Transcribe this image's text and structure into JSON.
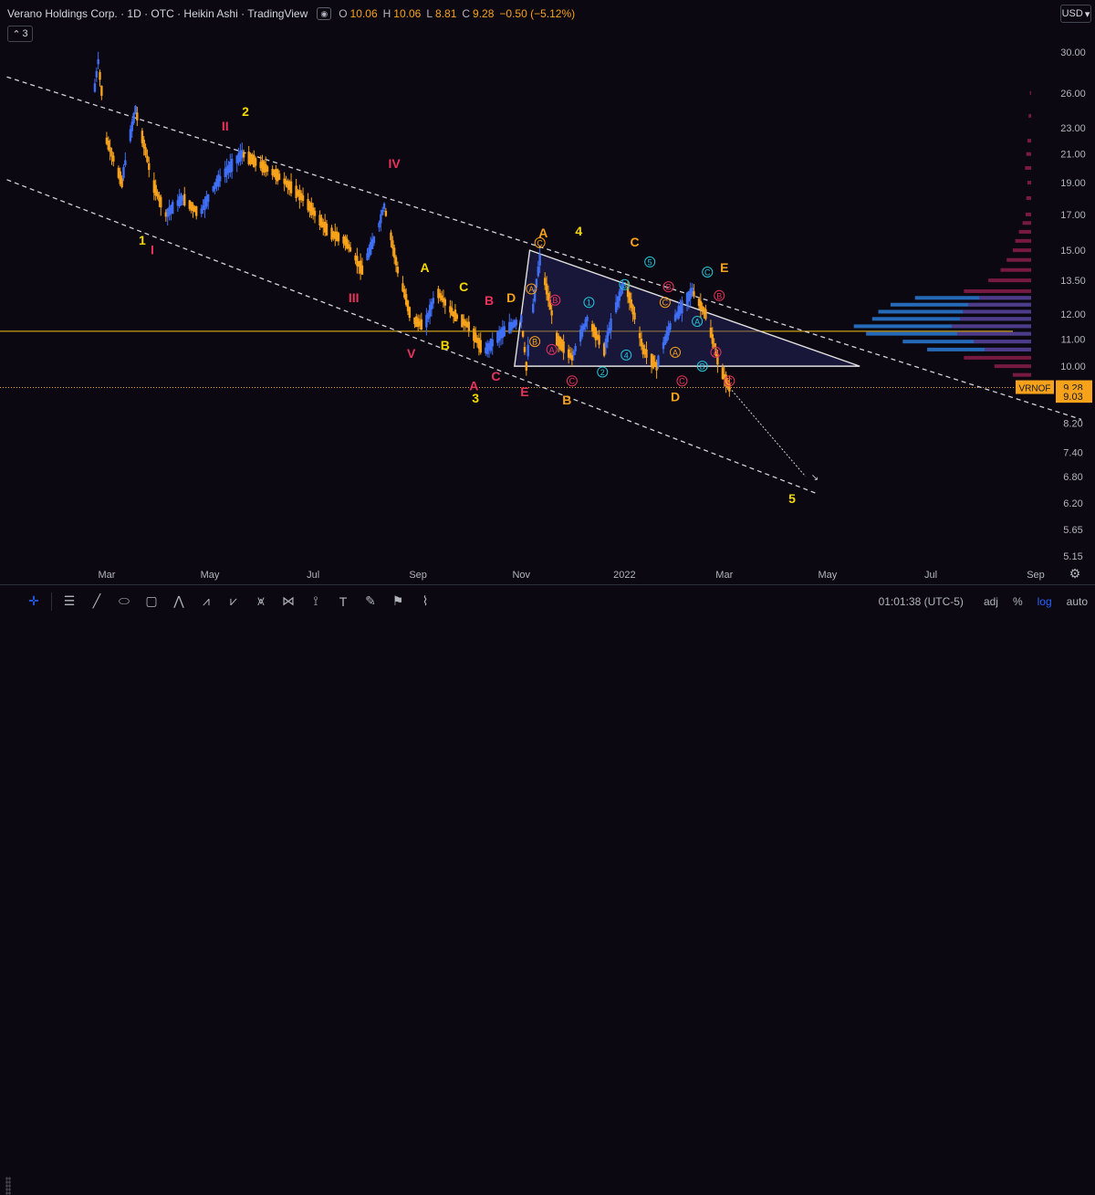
{
  "header": {
    "title": "Verano Holdings Corp. · 1D · OTC · Heikin Ashi · TradingView",
    "ohlc": [
      {
        "key": "O",
        "value": "10.06"
      },
      {
        "key": "H",
        "value": "10.06"
      },
      {
        "key": "L",
        "value": "8.81"
      },
      {
        "key": "C",
        "value": "9.28"
      },
      {
        "key": "",
        "value": "−0.50 (−5.12%)"
      }
    ],
    "collapse_count": "3",
    "currency": "USD"
  },
  "chart_data": {
    "type": "candlestick",
    "price_scale": "log",
    "y_ticks": [
      "30.00",
      "26.00",
      "23.00",
      "21.00",
      "19.00",
      "17.00",
      "15.00",
      "13.50",
      "12.00",
      "11.00",
      "10.00",
      "9.00",
      "8.20",
      "7.40",
      "6.80",
      "6.20",
      "5.65",
      "5.15"
    ],
    "x_ticks": [
      "Mar",
      "May",
      "Jul",
      "Sep",
      "Nov",
      "2022",
      "Mar",
      "May",
      "Jul",
      "Sep"
    ],
    "last_price": {
      "symbol": "VRNOF",
      "price": "9.28",
      "second": "9.03"
    },
    "horizontal_level": 11.3,
    "colors": {
      "up": "#3f6ff5",
      "down": "#f7a21b",
      "bg": "#0c0811",
      "trend": "#e0e0e0",
      "wave_yellow": "#f5d800",
      "wave_red": "#e8335c",
      "wave_orange": "#f7a21b",
      "wave_cyan": "#26c6da"
    },
    "price_path": [
      [
        "2021-02-20",
        24.0
      ],
      [
        "2021-02-24",
        29.0
      ],
      [
        "2021-03-01",
        22.0
      ],
      [
        "2021-03-10",
        19.0
      ],
      [
        "2021-03-18",
        24.5
      ],
      [
        "2021-03-28",
        19.0
      ],
      [
        "2021-04-05",
        17.0
      ],
      [
        "2021-04-15",
        18.0
      ],
      [
        "2021-04-25",
        17.0
      ],
      [
        "2021-05-05",
        19.0
      ],
      [
        "2021-05-20",
        21.0
      ],
      [
        "2021-06-10",
        19.5
      ],
      [
        "2021-06-25",
        18.0
      ],
      [
        "2021-07-10",
        16.0
      ],
      [
        "2021-07-20",
        15.5
      ],
      [
        "2021-07-30",
        14.0
      ],
      [
        "2021-08-08",
        16.0
      ],
      [
        "2021-08-12",
        17.5
      ],
      [
        "2021-08-20",
        14.0
      ],
      [
        "2021-08-28",
        11.8
      ],
      [
        "2021-09-05",
        11.5
      ],
      [
        "2021-09-12",
        13.0
      ],
      [
        "2021-09-22",
        12.0
      ],
      [
        "2021-10-01",
        11.5
      ],
      [
        "2021-10-10",
        10.5
      ],
      [
        "2021-10-20",
        11.2
      ],
      [
        "2021-11-01",
        11.8
      ],
      [
        "2021-11-04",
        10.0
      ],
      [
        "2021-11-12",
        14.5
      ],
      [
        "2021-11-22",
        11.0
      ],
      [
        "2021-12-01",
        10.3
      ],
      [
        "2021-12-10",
        11.8
      ],
      [
        "2021-12-20",
        10.6
      ],
      [
        "2022-01-01",
        13.5
      ],
      [
        "2022-01-12",
        10.6
      ],
      [
        "2022-01-20",
        10.0
      ],
      [
        "2022-01-28",
        11.5
      ],
      [
        "2022-02-10",
        13.0
      ],
      [
        "2022-02-18",
        12.0
      ],
      [
        "2022-02-26",
        10.0
      ],
      [
        "2022-03-04",
        9.28
      ]
    ],
    "projection": [
      [
        "2022-03-04",
        9.28
      ],
      [
        "2022-04-18",
        6.8
      ]
    ],
    "triangle": [
      [
        "2021-11-06",
        15.0
      ],
      [
        "2022-05-20",
        10.0
      ],
      [
        "2021-10-28",
        10.0
      ]
    ],
    "channel_upper": [
      [
        "2021-01-01",
        27.5
      ],
      [
        "2022-09-28",
        8.3
      ]
    ],
    "channel_lower": [
      [
        "2021-01-01",
        19.2
      ],
      [
        "2022-04-25",
        6.4
      ]
    ],
    "wave_labels": [
      {
        "text": "1",
        "date": "2021-03-22",
        "price": 15.3,
        "color": "yellow"
      },
      {
        "text": "2",
        "date": "2021-05-22",
        "price": 24.0,
        "color": "yellow"
      },
      {
        "text": "3",
        "date": "2021-10-05",
        "price": 8.8,
        "color": "yellow"
      },
      {
        "text": "4",
        "date": "2021-12-05",
        "price": 15.8,
        "color": "yellow"
      },
      {
        "text": "5",
        "date": "2022-04-10",
        "price": 6.2,
        "color": "yellow"
      },
      {
        "text": "I",
        "date": "2021-03-28",
        "price": 14.8,
        "color": "red"
      },
      {
        "text": "II",
        "date": "2021-05-10",
        "price": 22.8,
        "color": "red"
      },
      {
        "text": "III",
        "date": "2021-07-25",
        "price": 12.5,
        "color": "red"
      },
      {
        "text": "IV",
        "date": "2021-08-18",
        "price": 20.0,
        "color": "red"
      },
      {
        "text": "V",
        "date": "2021-08-28",
        "price": 10.3,
        "color": "red"
      },
      {
        "text": "A",
        "date": "2021-09-05",
        "price": 13.9,
        "color": "yellow"
      },
      {
        "text": "B",
        "date": "2021-09-17",
        "price": 10.6,
        "color": "yellow"
      },
      {
        "text": "C",
        "date": "2021-09-28",
        "price": 13.0,
        "color": "yellow"
      },
      {
        "text": "A",
        "date": "2021-10-04",
        "price": 9.2,
        "color": "red"
      },
      {
        "text": "B",
        "date": "2021-10-13",
        "price": 12.4,
        "color": "red"
      },
      {
        "text": "C",
        "date": "2021-10-17",
        "price": 9.5,
        "color": "red"
      },
      {
        "text": "D",
        "date": "2021-10-26",
        "price": 12.5,
        "color": "orange"
      },
      {
        "text": "E",
        "date": "2021-11-03",
        "price": 9.0,
        "color": "red"
      },
      {
        "text": "A",
        "date": "2021-11-14",
        "price": 15.7,
        "color": "orange"
      },
      {
        "text": "B",
        "date": "2021-11-28",
        "price": 8.75,
        "color": "orange"
      },
      {
        "text": "C",
        "date": "2022-01-07",
        "price": 15.2,
        "color": "orange"
      },
      {
        "text": "D",
        "date": "2022-01-31",
        "price": 8.85,
        "color": "orange"
      },
      {
        "text": "E",
        "date": "2022-03-01",
        "price": 13.9,
        "color": "orange"
      }
    ],
    "circle_labels": [
      {
        "text": "C",
        "date": "2021-11-12",
        "price": 15.4,
        "color": "orange"
      },
      {
        "text": "A",
        "date": "2021-11-07",
        "price": 13.1,
        "color": "orange"
      },
      {
        "text": "B",
        "date": "2021-11-09",
        "price": 10.9,
        "color": "orange"
      },
      {
        "text": "B",
        "date": "2021-11-21",
        "price": 12.6,
        "color": "red"
      },
      {
        "text": "A",
        "date": "2021-11-19",
        "price": 10.6,
        "color": "red"
      },
      {
        "text": "C",
        "date": "2021-12-01",
        "price": 9.5,
        "color": "red"
      },
      {
        "text": "1",
        "date": "2021-12-11",
        "price": 12.5,
        "color": "cyan"
      },
      {
        "text": "2",
        "date": "2021-12-19",
        "price": 9.8,
        "color": "cyan"
      },
      {
        "text": "3",
        "date": "2022-01-01",
        "price": 13.3,
        "color": "cyan"
      },
      {
        "text": "4",
        "date": "2022-01-02",
        "price": 10.4,
        "color": "cyan"
      },
      {
        "text": "5",
        "date": "2022-01-16",
        "price": 14.4,
        "color": "cyan"
      },
      {
        "text": "C",
        "date": "2022-01-25",
        "price": 12.5,
        "color": "orange"
      },
      {
        "text": "B",
        "date": "2022-01-27",
        "price": 13.2,
        "color": "red"
      },
      {
        "text": "A",
        "date": "2022-01-31",
        "price": 10.5,
        "color": "orange"
      },
      {
        "text": "C",
        "date": "2022-02-04",
        "price": 9.5,
        "color": "red"
      },
      {
        "text": "A",
        "date": "2022-02-13",
        "price": 11.7,
        "color": "cyan"
      },
      {
        "text": "B",
        "date": "2022-02-16",
        "price": 10.0,
        "color": "cyan"
      },
      {
        "text": "C",
        "date": "2022-02-19",
        "price": 13.9,
        "color": "cyan"
      },
      {
        "text": "B",
        "date": "2022-02-26",
        "price": 12.8,
        "color": "red"
      },
      {
        "text": "A",
        "date": "2022-02-24",
        "price": 10.5,
        "color": "red"
      },
      {
        "text": "C",
        "date": "2022-03-04",
        "price": 9.5,
        "color": "red"
      }
    ]
  },
  "toolbar": {
    "tools": [
      "crosshair-icon",
      "trend-lines-icon",
      "line-icon",
      "ellipse-icon",
      "rectangle-icon",
      "path-icon",
      "elliott-impulse-icon",
      "elliott-correction-icon",
      "elliott-triangle-icon",
      "pattern-icon",
      "measure-icon",
      "text-icon",
      "brush-icon",
      "flag-icon",
      "ruler-icon"
    ],
    "clock": "01:01:38 (UTC-5)",
    "adj": "adj",
    "percent": "%",
    "log": "log",
    "auto": "auto"
  }
}
